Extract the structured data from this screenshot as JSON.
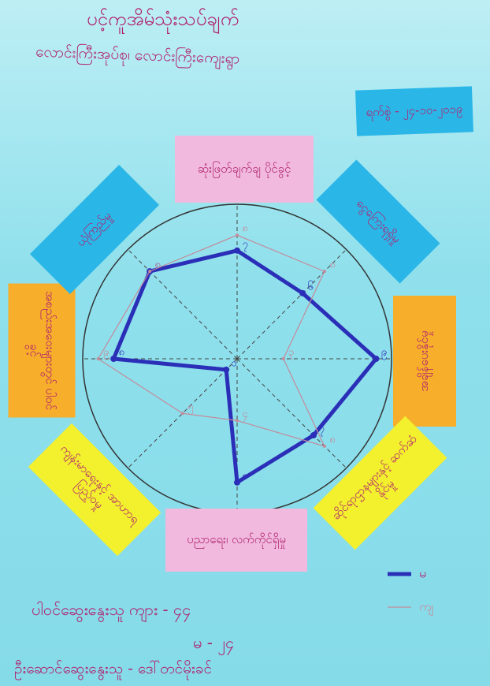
{
  "chart_data": {
    "type": "radar",
    "title": "ပင့်ကူအိမ်သုံးသပ်ချက်",
    "subtitle": "လောင်းကြီးအုပ်စု၊ လောင်းကြီးကျေးရွာ",
    "date": "ရက်စွဲ - ၂၄-၁၀-၂၀၁၉",
    "categories": [
      "ဆုံးဖြတ်ချက်ချ ပိုင်ခွင့်",
      "ငွေကြေးရရှိမှု",
      "အချိန်ပေးနိုင်မှု",
      "ဆိုင်ရာဌာနများနှင့် ဆက်ဆံနိုင်မှု",
      "ပညာရေး၊ လက်ကိုင်ရှိမှု",
      "ကျန်းမာရေးနှင့် အာဟာရပြည့်ဝမှု",
      "အစည်းအဝေးများတွင် ပါဝင်ခွင့်",
      "ယုံကြည်မှု"
    ],
    "ylim": [
      0,
      10
    ],
    "series": [
      {
        "name": "မ",
        "color": "#2b2fb8",
        "values": [
          7,
          6,
          9,
          7,
          8,
          1,
          8,
          8
        ],
        "value_labels": [
          "၇",
          "၆",
          "၉",
          "၇",
          "၈",
          "၁",
          "၈",
          "၈"
        ]
      },
      {
        "name": "ကျ",
        "color": "#c48a9a",
        "values": [
          8,
          8,
          3,
          8,
          4,
          5,
          9,
          8
        ],
        "value_labels": [
          "၈",
          "၈",
          "၃",
          "၈",
          "၄",
          "၅",
          "၉",
          "၈"
        ]
      }
    ],
    "footer": [
      "ပါဝင်ဆွေးနွေးသူ ကျား - ၄၄",
      "မ - ၂၄",
      "ဦးဆောင်ဆွေးနွေးသူ - ဒေါ်တင်မိုးခင်"
    ]
  }
}
